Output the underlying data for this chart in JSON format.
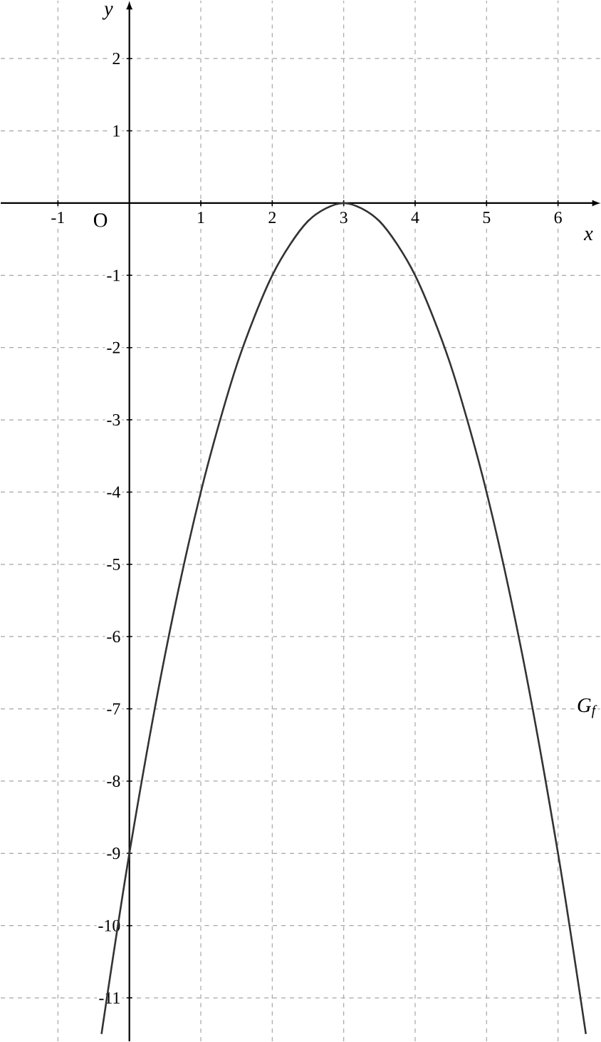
{
  "chart_data": {
    "type": "line",
    "xlabel": "x",
    "ylabel": "y",
    "x": [
      -0.39,
      0,
      0.5,
      1,
      1.5,
      2,
      2.5,
      3,
      3.5,
      4,
      4.5,
      5,
      5.5,
      6,
      6.39
    ],
    "series": [
      {
        "color": "#333333",
        "values": [
          -11.5,
          -9,
          -6.25,
          -4,
          -2.25,
          -1,
          -0.25,
          0,
          -0.25,
          -1,
          -2.25,
          -4,
          -6.25,
          -9,
          -11.5
        ]
      }
    ],
    "xlim": [
      -1.8,
      6.6
    ],
    "ylim": [
      -11.6,
      2.8
    ],
    "xticks": [
      -1,
      1,
      2,
      3,
      4,
      5,
      6
    ],
    "yticks": [
      2,
      1,
      -1,
      -2,
      -3,
      -4,
      -5,
      -6,
      -7,
      -8,
      -9,
      -10,
      -11
    ],
    "grid": true,
    "marker": "none",
    "line_style": "solid",
    "annotations": [
      "O",
      "G$_{f}$"
    ]
  }
}
